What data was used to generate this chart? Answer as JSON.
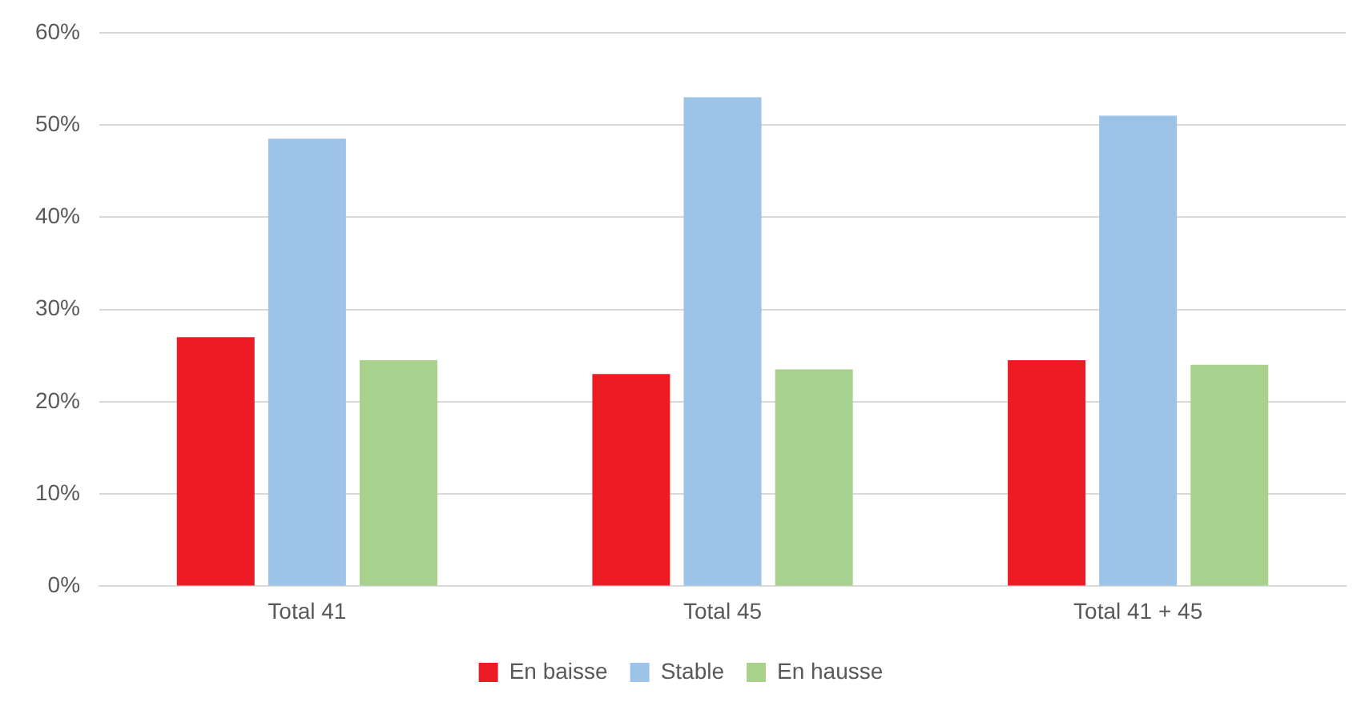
{
  "chart_data": {
    "type": "bar",
    "categories": [
      "Total 41",
      "Total 45",
      "Total 41 + 45"
    ],
    "series": [
      {
        "name": "En baisse",
        "color": "#ed1c24",
        "values": [
          27,
          23,
          24.5
        ]
      },
      {
        "name": "Stable",
        "color": "#9dc3e6",
        "values": [
          48.5,
          53,
          51
        ]
      },
      {
        "name": "En hausse",
        "color": "#a9d18e",
        "values": [
          24.5,
          23.5,
          24
        ]
      }
    ],
    "ylim": [
      0,
      60
    ],
    "yticks": [
      {
        "value": 0,
        "label": "0%"
      },
      {
        "value": 10,
        "label": "10%"
      },
      {
        "value": 20,
        "label": "20%"
      },
      {
        "value": 30,
        "label": "30%"
      },
      {
        "value": 40,
        "label": "40%"
      },
      {
        "value": 50,
        "label": "50%"
      },
      {
        "value": 60,
        "label": "60%"
      }
    ],
    "grid": "y",
    "legend": "bottom"
  }
}
